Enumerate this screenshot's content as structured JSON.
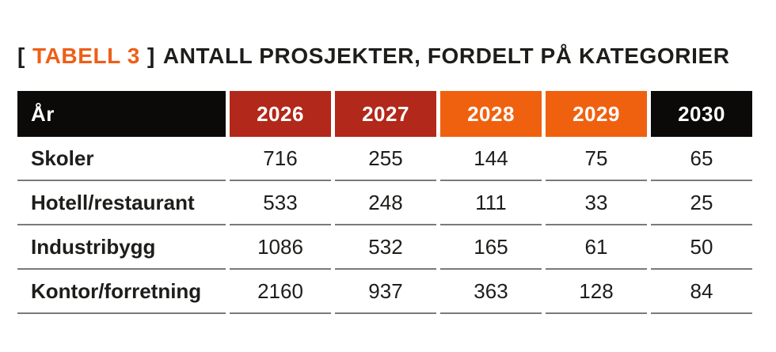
{
  "title": {
    "bracket_open": "[",
    "tag": "TABELL 3",
    "bracket_close": "]",
    "text": "ANTALL PROSJEKTER, FORDELT PÅ KATEGORIER"
  },
  "table": {
    "header": {
      "label": "År",
      "years": [
        "2026",
        "2027",
        "2028",
        "2029",
        "2030"
      ],
      "year_colors": [
        "#b2281a",
        "#b2281a",
        "#f0610f",
        "#f0610f",
        "#0b0a08"
      ]
    },
    "rows": [
      {
        "label": "Skoler",
        "values": [
          "716",
          "255",
          "144",
          "75",
          "65"
        ]
      },
      {
        "label": "Hotell/restaurant",
        "values": [
          "533",
          "248",
          "111",
          "33",
          "25"
        ]
      },
      {
        "label": "Industribygg",
        "values": [
          "1086",
          "532",
          "165",
          "61",
          "50"
        ]
      },
      {
        "label": "Kontor/forretning",
        "values": [
          "2160",
          "937",
          "363",
          "128",
          "84"
        ]
      }
    ]
  },
  "colors": {
    "title_accent": "#ee5f17",
    "text": "#1d1d1b",
    "divider": "#7a7a7a",
    "header_black": "#0b0a08",
    "header_red": "#b2281a",
    "header_orange": "#f0610f",
    "header_text": "#ffffff"
  },
  "chart_data": {
    "type": "table",
    "title": "[ TABELL 3 ] ANTALL PROSJEKTER, FORDELT PÅ KATEGORIER",
    "columns": [
      "År",
      "2026",
      "2027",
      "2028",
      "2029",
      "2030"
    ],
    "rows": [
      [
        "Skoler",
        716,
        255,
        144,
        75,
        65
      ],
      [
        "Hotell/restaurant",
        533,
        248,
        111,
        33,
        25
      ],
      [
        "Industribygg",
        1086,
        532,
        165,
        61,
        50
      ],
      [
        "Kontor/forretning",
        2160,
        937,
        363,
        128,
        84
      ]
    ],
    "layout_hints": {
      "header_fill_by_column": [
        "#0b0a08",
        "#b2281a",
        "#b2281a",
        "#f0610f",
        "#f0610f",
        "#0b0a08"
      ],
      "header_text_color": "#ffffff",
      "row_divider_color": "#7a7a7a",
      "grid": "horizontal-only, segmented per column"
    }
  }
}
